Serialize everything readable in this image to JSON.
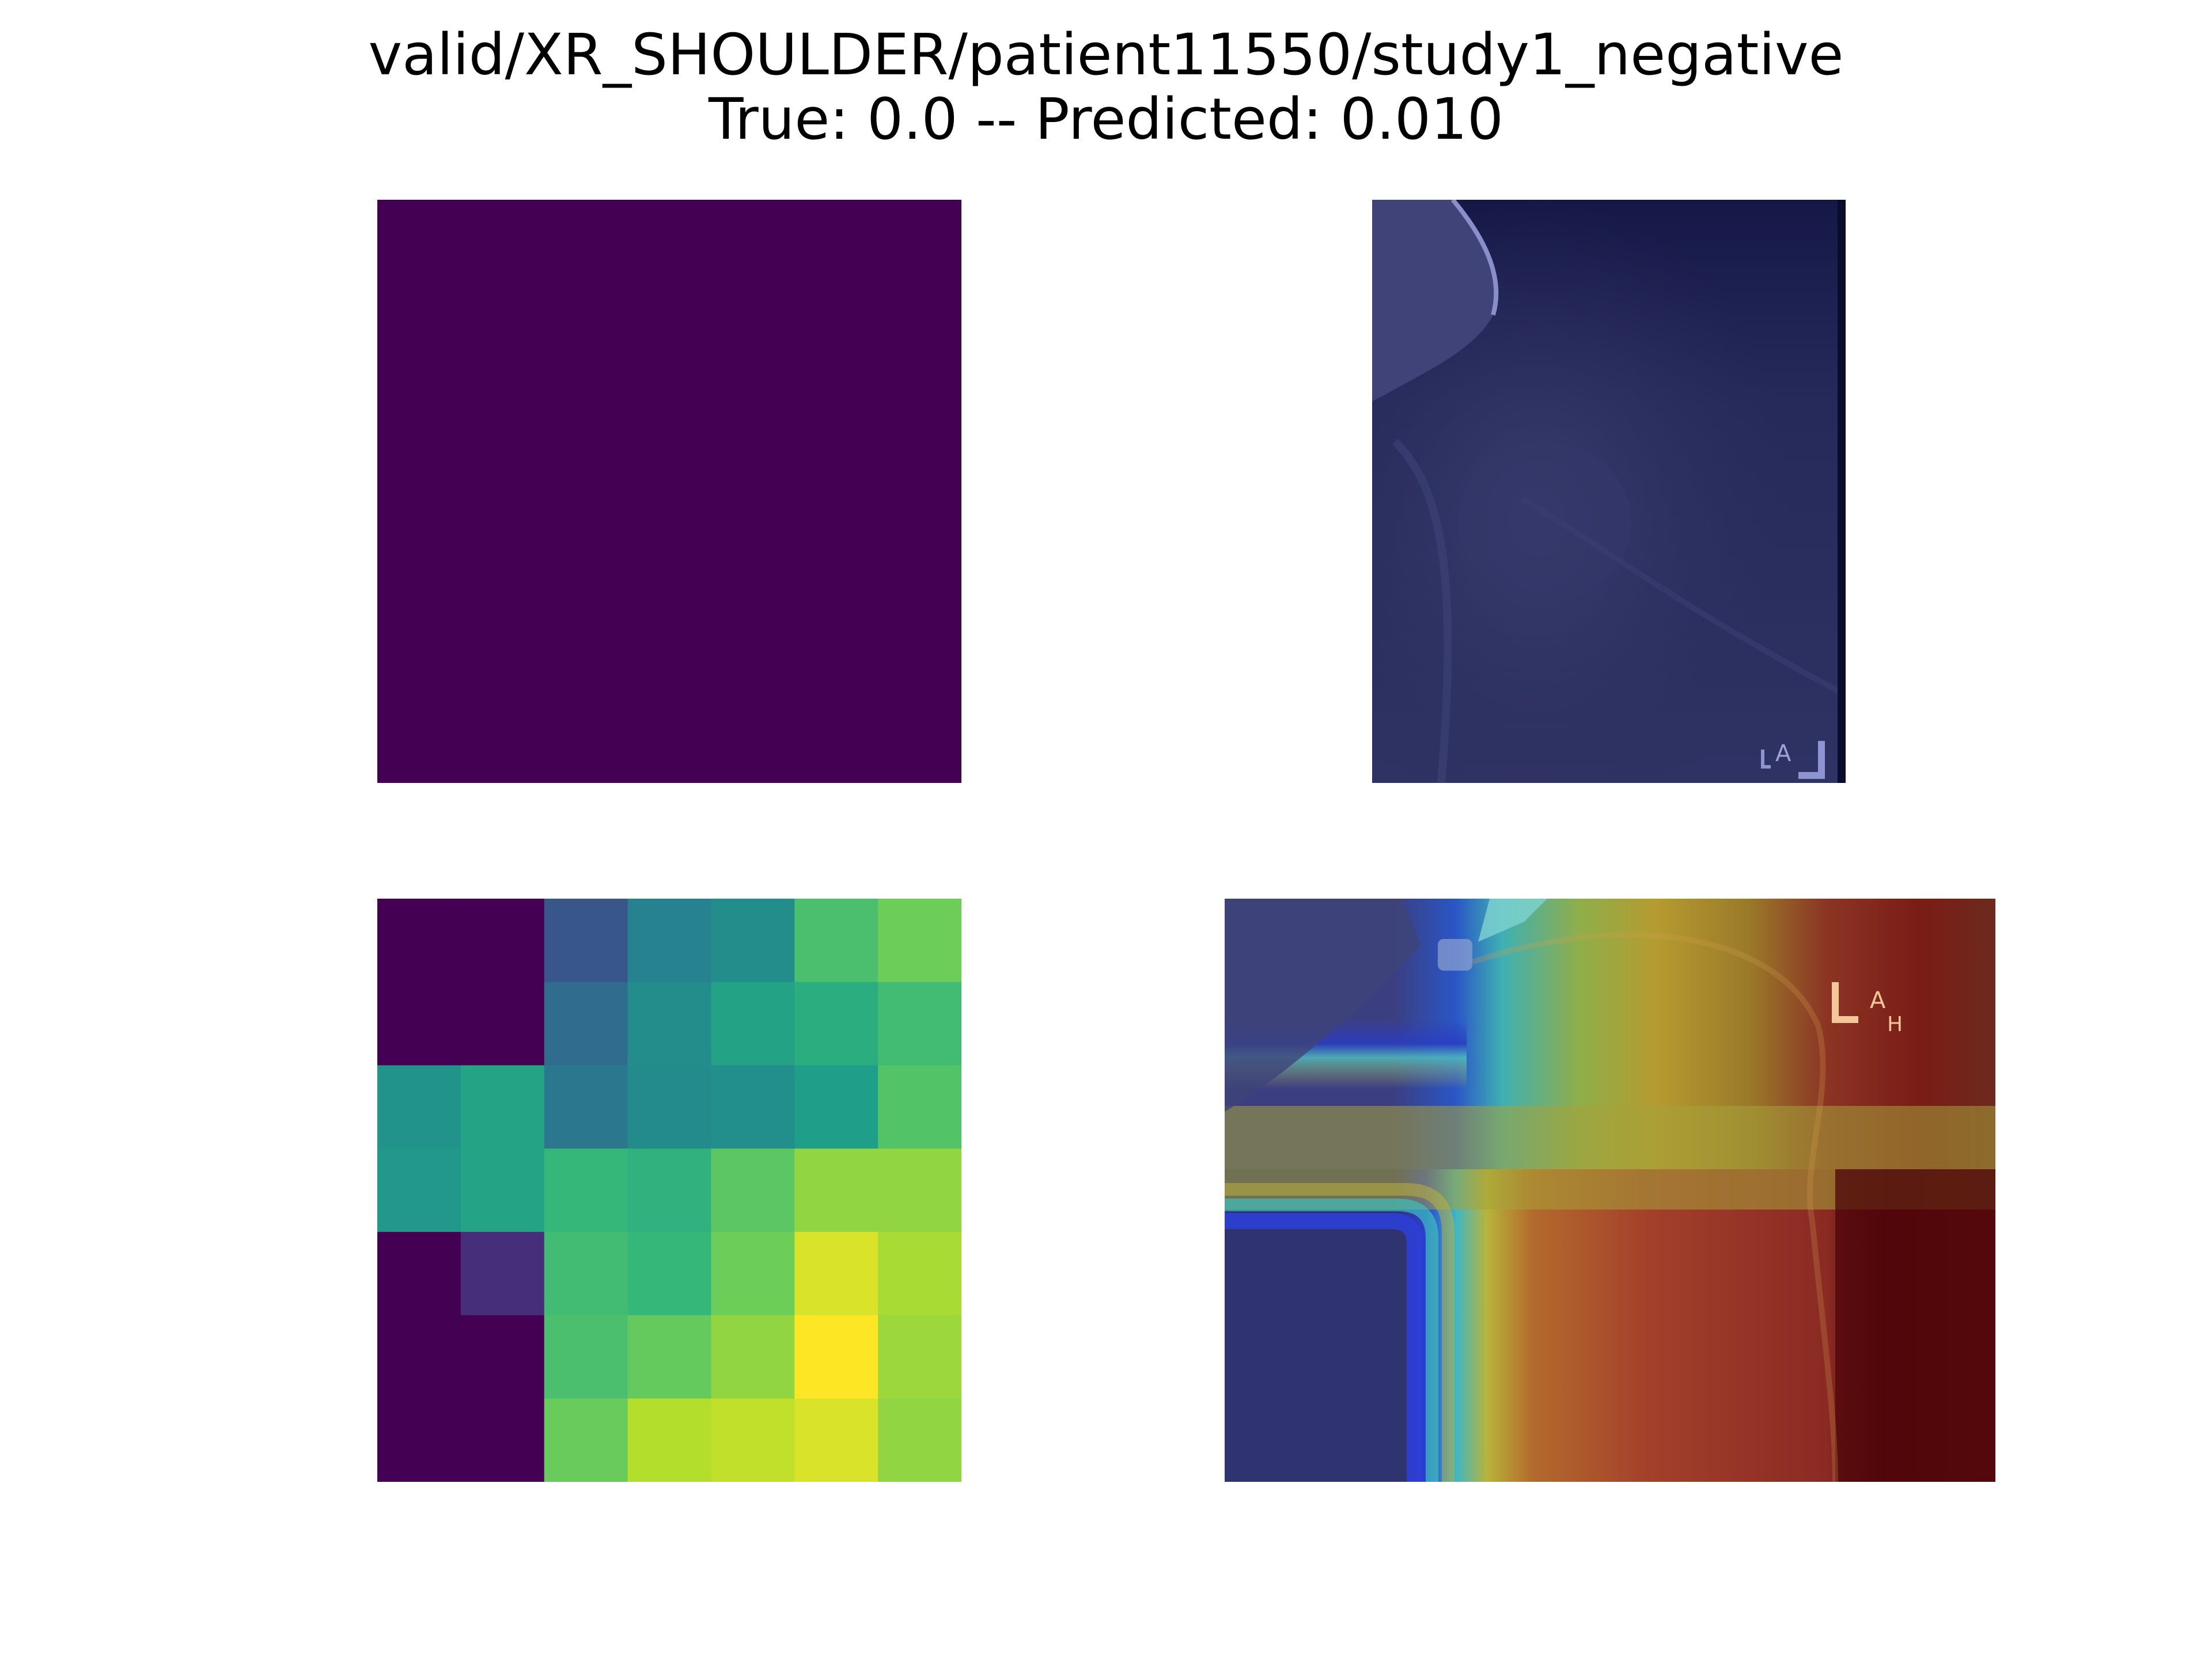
{
  "title": {
    "line1": "valid/XR_SHOULDER/patient11550/study1_negative",
    "line2": "True: 0.0 -- Predicted: 0.010"
  },
  "colors": {
    "background": "#ffffff",
    "empty_heatmap": "#440154",
    "xray_tint": "#2c2f5e"
  },
  "panels": {
    "top_left": {
      "kind": "heatmap",
      "fill": "#440154"
    },
    "top_right": {
      "kind": "xray-image",
      "marker_text": "A"
    },
    "bottom_left": {
      "kind": "heatmap-grid"
    },
    "bottom_right": {
      "kind": "xray-heat-overlay",
      "marker_text_a": "A",
      "marker_text_h": "H"
    }
  },
  "chart_data": [
    {
      "type": "heatmap",
      "colormap": "viridis",
      "rows": 7,
      "cols": 7,
      "values": [
        [
          0.0,
          0.0,
          0.3,
          0.5,
          0.55,
          0.8,
          0.88
        ],
        [
          0.0,
          0.0,
          0.4,
          0.55,
          0.65,
          0.7,
          0.78
        ],
        [
          0.58,
          0.66,
          0.45,
          0.54,
          0.56,
          0.63,
          0.82
        ],
        [
          0.6,
          0.66,
          0.75,
          0.72,
          0.84,
          0.91,
          0.91
        ],
        [
          0.0,
          0.15,
          0.78,
          0.75,
          0.88,
          0.97,
          0.93
        ],
        [
          0.0,
          0.0,
          0.8,
          0.86,
          0.91,
          1.0,
          0.92
        ],
        [
          0.0,
          0.0,
          0.87,
          0.94,
          0.95,
          0.97,
          0.91
        ]
      ]
    }
  ]
}
